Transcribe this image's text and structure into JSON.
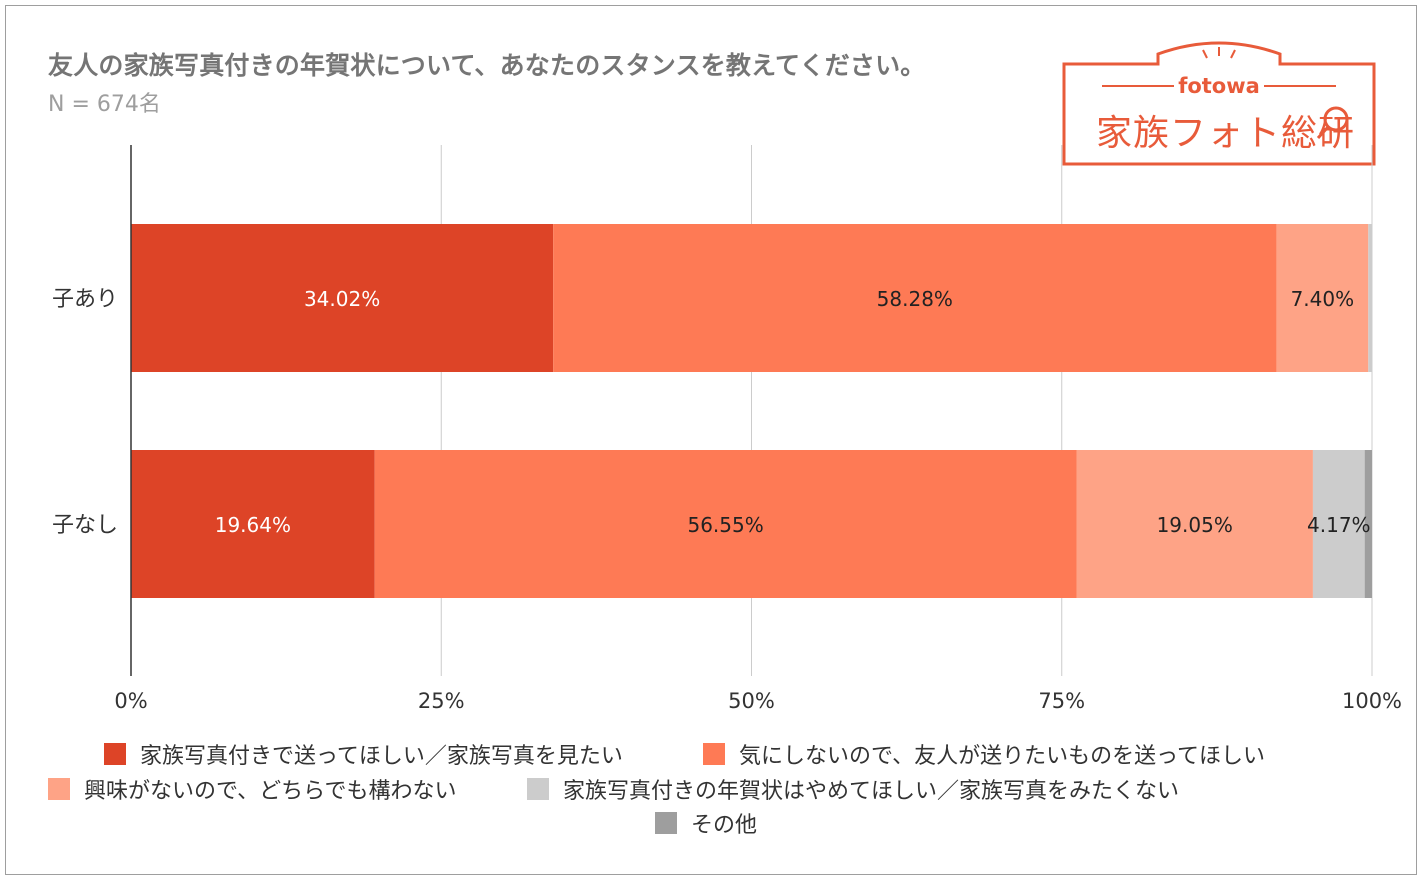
{
  "title": "友人の家族写真付きの年賀状について、あなたのスタンスを教えてください。",
  "subtitle": "N = 674名",
  "logo": {
    "brand": "fotowa",
    "name": "家族フォト総研"
  },
  "colors": {
    "series": [
      "#dd4427",
      "#fe7a55",
      "#fea386",
      "#cccccc",
      "#9e9e9e"
    ],
    "grid": "#cccccc",
    "axis": "#333333",
    "logo": "#e85b3a"
  },
  "chart_data": {
    "type": "bar",
    "orientation": "horizontal",
    "stacked": true,
    "categories": [
      "子あり",
      "子なし"
    ],
    "series": [
      {
        "name": "家族写真付きで送ってほしい／家族写真を見たい",
        "values": [
          34.02,
          19.64
        ],
        "labels": [
          "34.02%",
          "19.64%"
        ]
      },
      {
        "name": "気にしないので、友人が送りたいものを送ってほしい",
        "values": [
          58.28,
          56.55
        ],
        "labels": [
          "58.28%",
          "56.55%"
        ]
      },
      {
        "name": "興味がないので、どちらでも構わない",
        "values": [
          7.4,
          19.05
        ],
        "labels": [
          "7.40%",
          "19.05%"
        ]
      },
      {
        "name": "家族写真付きの年賀状はやめてほしい／家族写真をみたくない",
        "values": [
          0.3,
          4.17
        ],
        "labels": [
          "",
          "4.17%"
        ]
      },
      {
        "name": "その他",
        "values": [
          0.0,
          0.59
        ],
        "labels": [
          "",
          ""
        ]
      }
    ],
    "xlim": [
      0,
      100
    ],
    "xticks": [
      "0%",
      "25%",
      "50%",
      "75%",
      "100%"
    ],
    "grid": true,
    "legend_position": "bottom"
  }
}
